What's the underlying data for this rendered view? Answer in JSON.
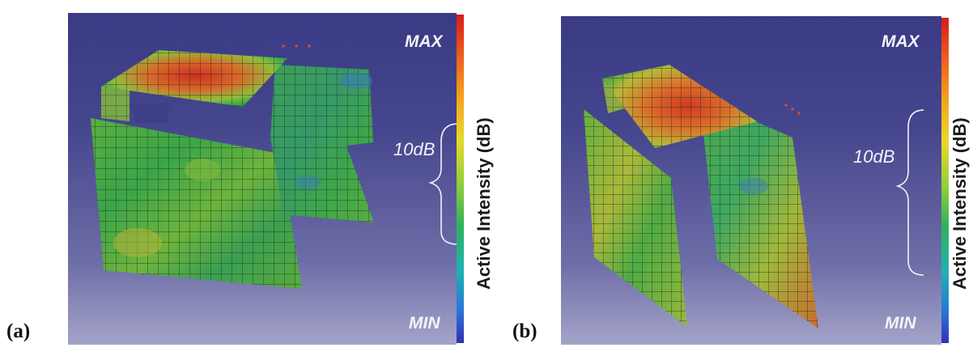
{
  "panels": [
    {
      "label": "(a)",
      "scale_max": "MAX",
      "scale_min": "MIN",
      "range_label": "10dB",
      "colorbar_label": "Active Intensity (dB)"
    },
    {
      "label": "(b)",
      "scale_max": "MAX",
      "scale_min": "MIN",
      "range_label": "10dB",
      "colorbar_label": "Active Intensity (dB)"
    }
  ],
  "colors": {
    "background_top": "#3a3a85",
    "background_bottom": "#a4a4c9",
    "mesh_green": "#3aa848",
    "mesh_red": "#d2402a",
    "mesh_yellow": "#b8c830",
    "mesh_blue": "#3a8ab8"
  }
}
